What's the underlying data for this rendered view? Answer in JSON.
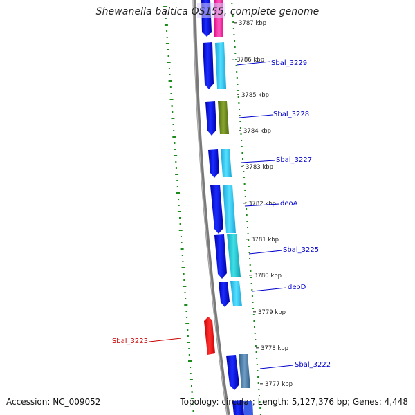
{
  "title": "Shewanella baltica OS155, complete genome",
  "footer": {
    "accession": "Accession: NC_009052",
    "stats": "Topology: circular; Length: 5,127,376 bp; Genes: 4,448"
  },
  "kbp_labels": [
    "3787 kbp",
    "3786 kbp",
    "3785 kbp",
    "3784 kbp",
    "3783 kbp",
    "3782 kbp",
    "3781 kbp",
    "3780 kbp",
    "3779 kbp",
    "3778 kbp",
    "3777 kbp"
  ],
  "gene_labels": [
    {
      "name": "Sbal_3229",
      "color": "#0000cc"
    },
    {
      "name": "Sbal_3228",
      "color": "#0000cc"
    },
    {
      "name": "Sbal_3227",
      "color": "#0000cc"
    },
    {
      "name": "deoA",
      "color": "#0000cc"
    },
    {
      "name": "Sbal_3225",
      "color": "#0000cc"
    },
    {
      "name": "deoD",
      "color": "#0000cc"
    },
    {
      "name": "Sbal_3222",
      "color": "#0000cc"
    },
    {
      "name": "Sbal_3223",
      "color": "#cc0000"
    }
  ],
  "colors": {
    "backbone": "#888888",
    "gc_ticks": "#1a8a1a",
    "cds": "#0a14dd",
    "rna": "#ff1a1a",
    "feature_cyan": "#22c8ee",
    "feature_olive": "#6e8a22",
    "feature_steel": "#4a7fa8",
    "feature_teal": "#22c8c8",
    "feature_pink": "#ff2ea8"
  }
}
